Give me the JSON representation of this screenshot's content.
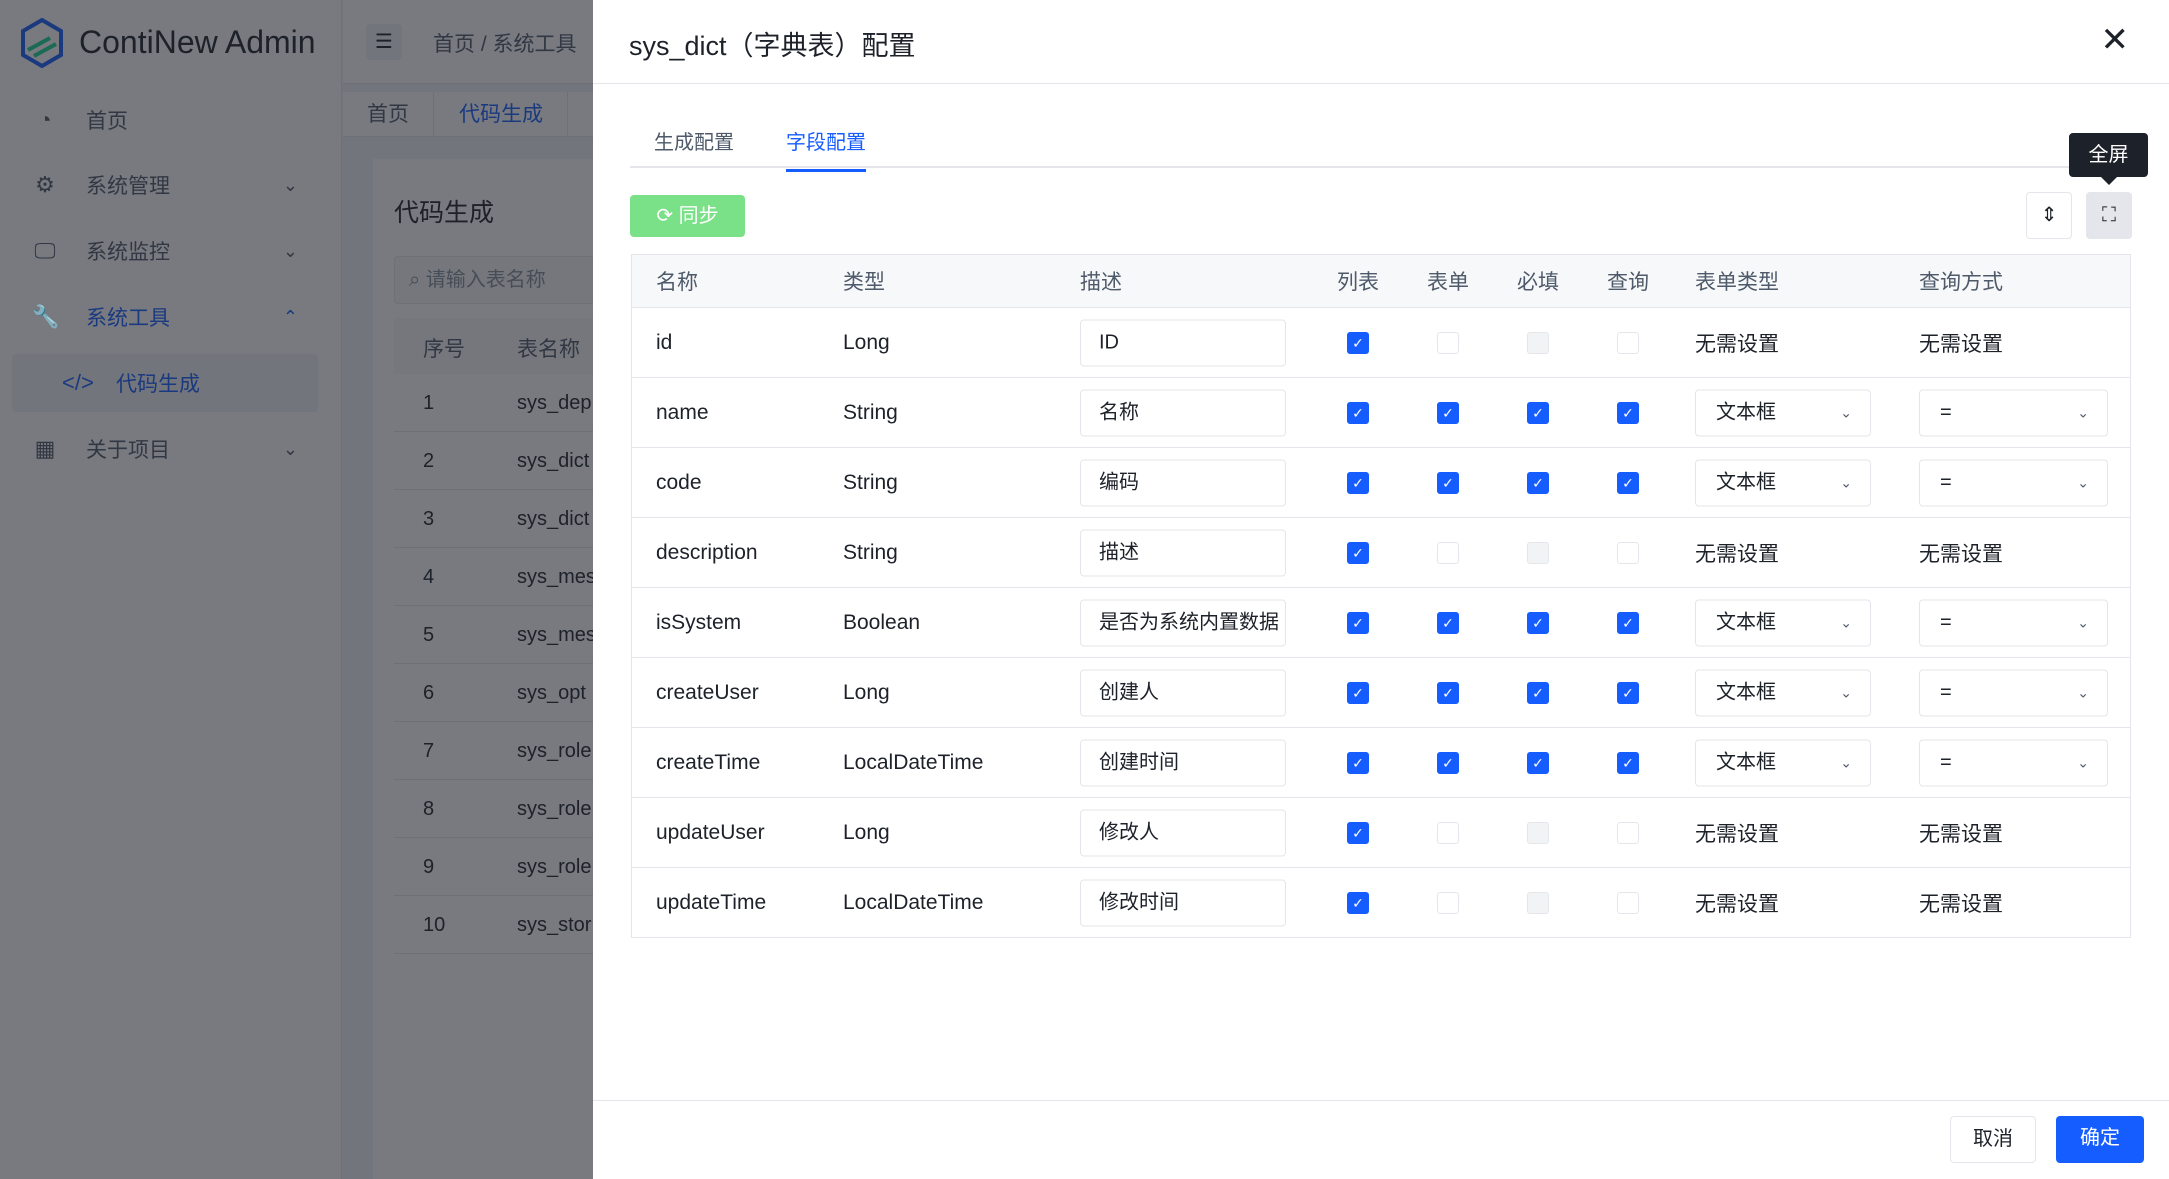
{
  "app": {
    "brand": "ContiNew Admin"
  },
  "sidebar": {
    "items": [
      {
        "label": "首页",
        "icon": "dashboard-icon",
        "glyph": "◔",
        "chevron": ""
      },
      {
        "label": "系统管理",
        "icon": "gear-icon",
        "glyph": "⚙",
        "chevron": "⌄"
      },
      {
        "label": "系统监控",
        "icon": "monitor-icon",
        "glyph": "🖵",
        "chevron": "⌄"
      },
      {
        "label": "系统工具",
        "icon": "wrench-icon",
        "glyph": "🔧",
        "chevron": "⌃"
      },
      {
        "label": "代码生成",
        "icon": "code-icon",
        "glyph": "</>",
        "chevron": ""
      },
      {
        "label": "关于项目",
        "icon": "grid-icon",
        "glyph": "▦",
        "chevron": "⌄"
      }
    ]
  },
  "breadcrumb": "首页  /  系统工具",
  "page_tabs": [
    "首页",
    "代码生成"
  ],
  "bg_page": {
    "title": "代码生成",
    "search_placeholder": "请输入表名称",
    "headers": [
      "序号",
      "表名称"
    ],
    "rows": [
      [
        "1",
        "sys_dep"
      ],
      [
        "2",
        "sys_dict"
      ],
      [
        "3",
        "sys_dict"
      ],
      [
        "4",
        "sys_mes"
      ],
      [
        "5",
        "sys_mes"
      ],
      [
        "6",
        "sys_opt"
      ],
      [
        "7",
        "sys_role"
      ],
      [
        "8",
        "sys_role"
      ],
      [
        "9",
        "sys_role"
      ],
      [
        "10",
        "sys_stor"
      ]
    ]
  },
  "drawer": {
    "title": "sys_dict（字典表）配置",
    "tabs": [
      "生成配置",
      "字段配置"
    ],
    "active_tab": 1,
    "sync_label": "同步",
    "tooltip": "全屏",
    "columns": [
      "名称",
      "类型",
      "描述",
      "列表",
      "表单",
      "必填",
      "查询",
      "表单类型",
      "查询方式"
    ],
    "none_label": "无需设置",
    "rows": [
      {
        "name": "id",
        "type": "Long",
        "desc": "ID",
        "list": true,
        "form": false,
        "required": false,
        "query": false,
        "form_type": null,
        "query_type": null
      },
      {
        "name": "name",
        "type": "String",
        "desc": "名称",
        "list": true,
        "form": true,
        "required": true,
        "query": true,
        "form_type": "文本框",
        "query_type": "="
      },
      {
        "name": "code",
        "type": "String",
        "desc": "编码",
        "list": true,
        "form": true,
        "required": true,
        "query": true,
        "form_type": "文本框",
        "query_type": "="
      },
      {
        "name": "description",
        "type": "String",
        "desc": "描述",
        "list": true,
        "form": false,
        "required": false,
        "query": false,
        "form_type": null,
        "query_type": null
      },
      {
        "name": "isSystem",
        "type": "Boolean",
        "desc": "是否为系统内置数据",
        "list": true,
        "form": true,
        "required": true,
        "query": true,
        "form_type": "文本框",
        "query_type": "="
      },
      {
        "name": "createUser",
        "type": "Long",
        "desc": "创建人",
        "list": true,
        "form": true,
        "required": true,
        "query": true,
        "form_type": "文本框",
        "query_type": "="
      },
      {
        "name": "createTime",
        "type": "LocalDateTime",
        "desc": "创建时间",
        "list": true,
        "form": true,
        "required": true,
        "query": true,
        "form_type": "文本框",
        "query_type": "="
      },
      {
        "name": "updateUser",
        "type": "Long",
        "desc": "修改人",
        "list": true,
        "form": false,
        "required": false,
        "query": false,
        "form_type": null,
        "query_type": null
      },
      {
        "name": "updateTime",
        "type": "LocalDateTime",
        "desc": "修改时间",
        "list": true,
        "form": false,
        "required": false,
        "query": false,
        "form_type": null,
        "query_type": null
      }
    ],
    "cancel_label": "取消",
    "confirm_label": "确定"
  },
  "colors": {
    "primary": "#165dff",
    "success_light": "#7be188",
    "overlay": "rgba(29,33,41,0.6)"
  }
}
